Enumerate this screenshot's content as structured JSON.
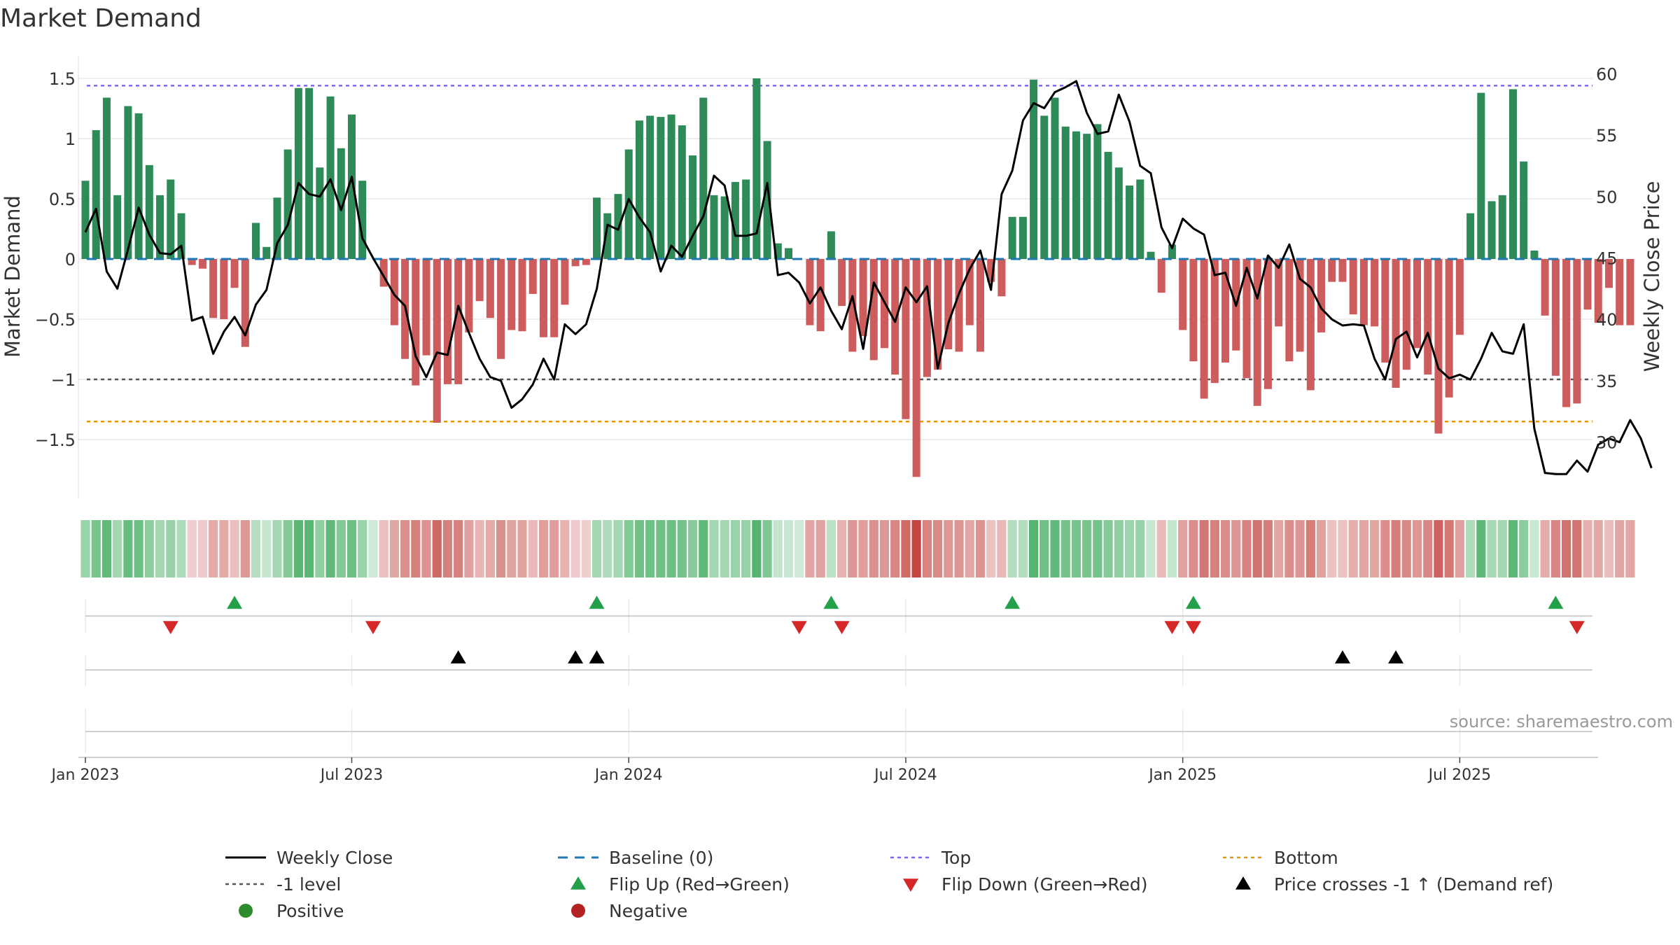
{
  "chart_data": {
    "type": "bar",
    "title": "Market Demand",
    "ylabel_left": "Market Demand",
    "ylabel_right": "Weekly Close Price",
    "ylim_left": [
      -1.95,
      1.6
    ],
    "ylim_right": [
      25.8,
      60.6
    ],
    "yticks_left": [
      {
        "v": 1.5,
        "label": "1.5"
      },
      {
        "v": 1,
        "label": "1"
      },
      {
        "v": 0.5,
        "label": "0.5"
      },
      {
        "v": 0,
        "label": "0"
      },
      {
        "v": -0.5,
        "label": "−0.5"
      },
      {
        "v": -1,
        "label": "−1"
      },
      {
        "v": -1.5,
        "label": "−1.5"
      }
    ],
    "yticks_right": [
      {
        "v": 60,
        "label": "60"
      },
      {
        "v": 55,
        "label": "55"
      },
      {
        "v": 50,
        "label": "50"
      },
      {
        "v": 45,
        "label": "45"
      },
      {
        "v": 40,
        "label": "40"
      },
      {
        "v": 35,
        "label": "35"
      },
      {
        "v": 30,
        "label": "30"
      }
    ],
    "xticks": [
      {
        "week": 1,
        "label": "Jan 2023"
      },
      {
        "week": 26,
        "label": "Jul 2023"
      },
      {
        "week": 52,
        "label": "Jan 2024"
      },
      {
        "week": 78,
        "label": "Jul 2024"
      },
      {
        "week": 104,
        "label": "Jan 2025"
      },
      {
        "week": 130,
        "label": "Jul 2025"
      }
    ],
    "levels": {
      "top": 1.44,
      "bottom": -1.35,
      "minus_one": -1,
      "baseline": 0
    },
    "demand": [
      0.65,
      1.07,
      1.34,
      0.53,
      1.27,
      1.21,
      0.78,
      0.53,
      0.66,
      0.38,
      -0.05,
      -0.08,
      -0.49,
      -0.5,
      -0.24,
      -0.73,
      0.3,
      0.1,
      0.51,
      0.91,
      1.42,
      1.42,
      0.76,
      1.35,
      0.92,
      1.2,
      0.65,
      0,
      -0.23,
      -0.55,
      -0.83,
      -1.05,
      -0.8,
      -1.36,
      -1.04,
      -1.04,
      -0.61,
      -0.35,
      -0.49,
      -0.83,
      -0.59,
      -0.6,
      -0.29,
      -0.65,
      -0.65,
      -0.38,
      -0.06,
      -0.05,
      0.51,
      0.38,
      0.54,
      0.91,
      1.15,
      1.19,
      1.18,
      1.2,
      1.11,
      0.86,
      1.34,
      0.53,
      0.52,
      0.64,
      0.66,
      1.5,
      0.98,
      0.13,
      0.09,
      0,
      -0.55,
      -0.6,
      0.23,
      -0.39,
      -0.77,
      -0.64,
      -0.84,
      -0.74,
      -0.96,
      -1.33,
      -1.81,
      -0.98,
      -0.92,
      -0.75,
      -0.77,
      -0.55,
      -0.77,
      -0.19,
      -0.31,
      0.35,
      0.35,
      1.49,
      1.19,
      1.34,
      1.1,
      1.06,
      1.04,
      1.12,
      0.89,
      0.76,
      0.61,
      0.66,
      0.06,
      -0.28,
      0.12,
      -0.59,
      -0.85,
      -1.16,
      -1.03,
      -0.86,
      -0.76,
      -0.99,
      -1.22,
      -1.08,
      -0.56,
      -0.85,
      -0.77,
      -1.09,
      -0.61,
      -0.19,
      -0.19,
      -0.46,
      -0.55,
      -0.56,
      -0.86,
      -1.07,
      -0.92,
      -0.74,
      -0.96,
      -1.45,
      -1.15,
      -0.63,
      0.38,
      1.38,
      0.48,
      0.53,
      1.41,
      0.81,
      0.07,
      -0.47,
      -0.97,
      -1.23,
      -1.2,
      -0.42,
      -0.53,
      -0.24,
      -0.55,
      -0.55
    ],
    "weekly_close": [
      47.1,
      49.0,
      43.9,
      42.5,
      45.7,
      49.1,
      46.9,
      45.4,
      45.3,
      46.0,
      39.9,
      40.2,
      37.2,
      39.0,
      40.2,
      38.7,
      41.2,
      42.4,
      46.2,
      47.7,
      51.1,
      50.2,
      50.0,
      51.4,
      48.9,
      51.6,
      46.6,
      45.0,
      43.5,
      42.0,
      41.1,
      37.0,
      35.3,
      37.3,
      37.1,
      41.1,
      38.9,
      36.8,
      35.3,
      35.0,
      32.8,
      33.5,
      34.7,
      36.8,
      35.1,
      39.6,
      38.8,
      39.6,
      42.5,
      47.7,
      47.3,
      49.8,
      48.3,
      47.1,
      43.9,
      46.0,
      45.1,
      46.8,
      48.4,
      51.7,
      50.9,
      46.8,
      46.8,
      47.0,
      51.1,
      43.6,
      43.8,
      43.0,
      41.3,
      42.6,
      40.7,
      39.2,
      41.9,
      37.6,
      43.0,
      41.4,
      39.8,
      42.6,
      41.4,
      42.7,
      36.0,
      39.7,
      42.1,
      44.1,
      45.6,
      42.4,
      50.2,
      52.1,
      56.2,
      57.6,
      57.2,
      58.5,
      58.9,
      59.4,
      56.8,
      55.1,
      55.3,
      58.3,
      56.1,
      52.5,
      51.9,
      47.5,
      45.8,
      48.2,
      47.4,
      46.9,
      43.6,
      43.8,
      41.1,
      44.2,
      41.7,
      45.2,
      44.2,
      46.1,
      43.3,
      42.6,
      40.9,
      40.0,
      39.5,
      39.6,
      39.5,
      36.8,
      35.1,
      38.4,
      39.0,
      36.9,
      38.9,
      36.0,
      35.2,
      35.5,
      35.1,
      36.8,
      38.9,
      37.4,
      37.2,
      39.6,
      31.1,
      27.5,
      27.4,
      27.4,
      28.5,
      27.6,
      29.8,
      30.3,
      30.0,
      31.8,
      30.3,
      27.9
    ],
    "flips_up_weeks": [
      15,
      49,
      71,
      88,
      105,
      139
    ],
    "flips_down_weeks": [
      9,
      28,
      68,
      72,
      103,
      105,
      141
    ],
    "price_cross_weeks": [
      36,
      47,
      49,
      119,
      124
    ],
    "legend": [
      {
        "key": "weekly_close",
        "label": "Weekly Close"
      },
      {
        "key": "baseline",
        "label": "Baseline (0)"
      },
      {
        "key": "top",
        "label": "Top"
      },
      {
        "key": "bottom",
        "label": "Bottom"
      },
      {
        "key": "minus_one",
        "label": "-1 level"
      },
      {
        "key": "flip_up",
        "label": "Flip Up (Red→Green)"
      },
      {
        "key": "flip_down",
        "label": "Flip Down (Green→Red)"
      },
      {
        "key": "price_cross",
        "label": "Price crosses -1 ↑ (Demand ref)"
      },
      {
        "key": "positive",
        "label": "Positive"
      },
      {
        "key": "negative",
        "label": "Negative"
      }
    ],
    "source": "source: sharemaestro.com"
  },
  "colors": {
    "positive_bar": "#2e8b57",
    "negative_bar": "#cd5c5c",
    "close_line": "#000000",
    "baseline": "#1f77b4",
    "top": "#7b68ee",
    "bottom": "#e69500",
    "minus_one": "#555555",
    "flip_up": "#22a04a",
    "flip_down": "#d62728",
    "price_cross": "#000000",
    "positive_dot": "#2e8b2e",
    "negative_dot": "#b22222",
    "axis_text": "#333333",
    "grid": "#e8e8e8"
  }
}
